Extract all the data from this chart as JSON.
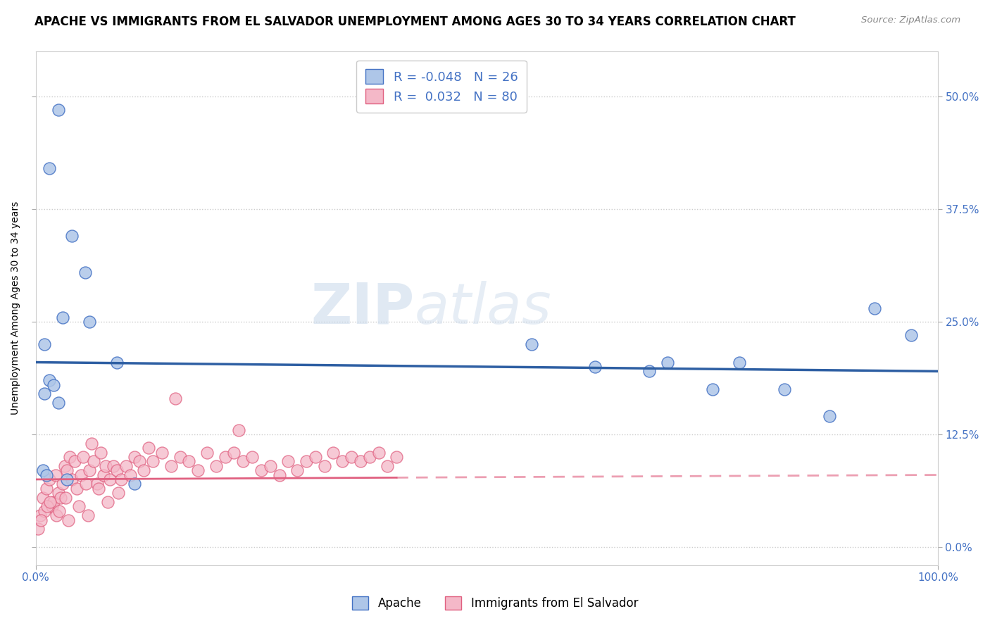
{
  "title": "APACHE VS IMMIGRANTS FROM EL SALVADOR UNEMPLOYMENT AMONG AGES 30 TO 34 YEARS CORRELATION CHART",
  "source": "Source: ZipAtlas.com",
  "ylabel": "Unemployment Among Ages 30 to 34 years",
  "xlim": [
    0,
    100
  ],
  "ylim": [
    -2,
    55
  ],
  "yticks": [
    0,
    12.5,
    25.0,
    37.5,
    50.0
  ],
  "ytick_labels_right": [
    "0.0%",
    "12.5%",
    "25.0%",
    "37.5%",
    "50.0%"
  ],
  "grid_color": "#cccccc",
  "background_color": "#ffffff",
  "apache_color": "#aec6e8",
  "apache_edge_color": "#4472c4",
  "apache_line_color": "#2e5fa3",
  "salvador_color": "#f4b8c8",
  "salvador_edge_color": "#e06080",
  "salvador_line_color": "#e06080",
  "legend_apache_R": "-0.048",
  "legend_apache_N": "26",
  "legend_salvador_R": "0.032",
  "legend_salvador_N": "80",
  "apache_x": [
    2.5,
    1.5,
    4.0,
    5.5,
    3.0,
    6.0,
    1.0,
    1.5,
    2.0,
    1.0,
    2.5,
    0.8,
    1.2,
    3.5,
    11.0,
    9.0,
    55.0,
    62.0,
    68.0,
    70.0,
    75.0,
    78.0,
    83.0,
    88.0,
    93.0,
    97.0
  ],
  "apache_y": [
    48.5,
    42.0,
    34.5,
    30.5,
    25.5,
    25.0,
    22.5,
    18.5,
    18.0,
    17.0,
    16.0,
    8.5,
    8.0,
    7.5,
    7.0,
    20.5,
    22.5,
    20.0,
    19.5,
    20.5,
    17.5,
    20.5,
    17.5,
    14.5,
    26.5,
    23.5
  ],
  "salvador_x": [
    0.5,
    0.8,
    1.0,
    1.2,
    1.5,
    1.8,
    2.0,
    2.2,
    2.5,
    2.8,
    3.0,
    3.2,
    3.5,
    3.8,
    4.0,
    4.3,
    4.6,
    5.0,
    5.3,
    5.6,
    6.0,
    6.4,
    6.8,
    7.2,
    7.5,
    7.8,
    8.2,
    8.6,
    9.0,
    9.5,
    10.0,
    10.5,
    11.0,
    11.5,
    12.0,
    12.5,
    13.0,
    14.0,
    15.0,
    16.0,
    17.0,
    18.0,
    19.0,
    20.0,
    21.0,
    22.0,
    23.0,
    24.0,
    25.0,
    26.0,
    27.0,
    28.0,
    29.0,
    30.0,
    31.0,
    32.0,
    33.0,
    34.0,
    35.0,
    36.0,
    37.0,
    38.0,
    39.0,
    40.0,
    0.3,
    0.6,
    1.3,
    1.6,
    2.3,
    2.6,
    3.3,
    3.6,
    4.8,
    5.8,
    6.2,
    7.0,
    8.0,
    9.2,
    15.5,
    22.5
  ],
  "salvador_y": [
    3.5,
    5.5,
    4.0,
    6.5,
    7.5,
    4.5,
    5.0,
    8.0,
    6.0,
    5.5,
    7.0,
    9.0,
    8.5,
    10.0,
    7.5,
    9.5,
    6.5,
    8.0,
    10.0,
    7.0,
    8.5,
    9.5,
    7.0,
    10.5,
    8.0,
    9.0,
    7.5,
    9.0,
    8.5,
    7.5,
    9.0,
    8.0,
    10.0,
    9.5,
    8.5,
    11.0,
    9.5,
    10.5,
    9.0,
    10.0,
    9.5,
    8.5,
    10.5,
    9.0,
    10.0,
    10.5,
    9.5,
    10.0,
    8.5,
    9.0,
    8.0,
    9.5,
    8.5,
    9.5,
    10.0,
    9.0,
    10.5,
    9.5,
    10.0,
    9.5,
    10.0,
    10.5,
    9.0,
    10.0,
    2.0,
    3.0,
    4.5,
    5.0,
    3.5,
    4.0,
    5.5,
    3.0,
    4.5,
    3.5,
    11.5,
    6.5,
    5.0,
    6.0,
    16.5,
    13.0
  ],
  "watermark_zip": "ZIP",
  "watermark_atlas": "atlas",
  "title_fontsize": 12,
  "axis_fontsize": 10,
  "tick_fontsize": 11,
  "legend_fontsize": 13,
  "apache_trend_start_y": 20.5,
  "apache_trend_end_y": 19.5,
  "salvador_trend_y": 7.5
}
